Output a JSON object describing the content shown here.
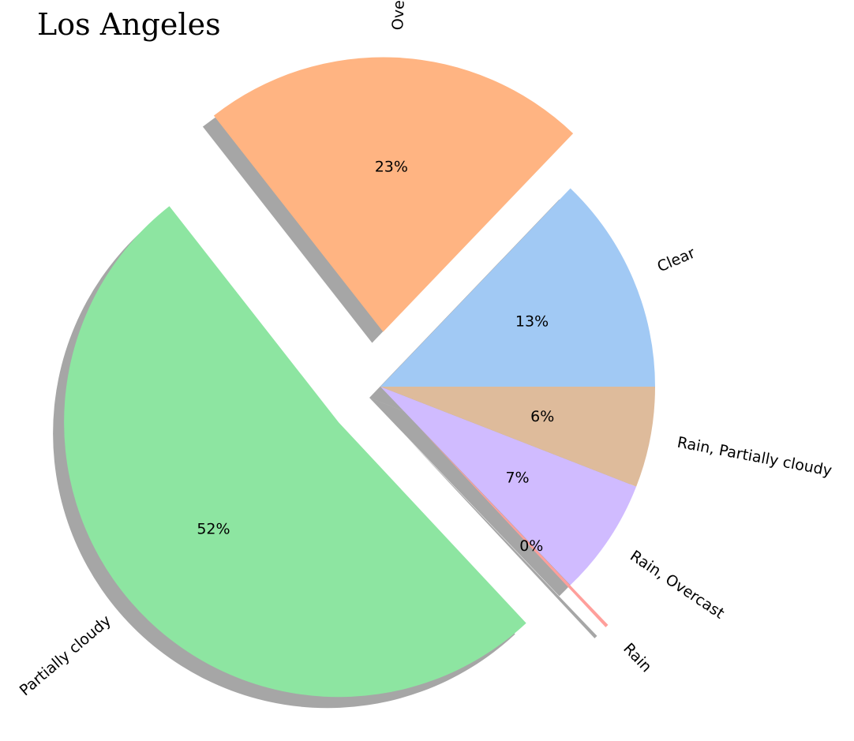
{
  "chart_data": {
    "type": "pie",
    "title": "Los Angeles",
    "categories": [
      "Clear",
      "Overcast",
      "Partially cloudy",
      "Rain",
      "Rain, Overcast",
      "Rain, Partially cloudy"
    ],
    "values": [
      13,
      23,
      52,
      0.2,
      7,
      6
    ],
    "percent_labels": [
      "13%",
      "23%",
      "52%",
      "0%",
      "7%",
      "6%"
    ],
    "colors": [
      "#a1c9f4",
      "#ffb482",
      "#8de5a1",
      "#ff9f9b",
      "#d0bbff",
      "#debb9b"
    ],
    "exploded": [
      "Overcast",
      "Partially cloudy",
      "Rain"
    ],
    "shadow": true,
    "start_angle_deg": 0,
    "direction": "counterclockwise"
  }
}
